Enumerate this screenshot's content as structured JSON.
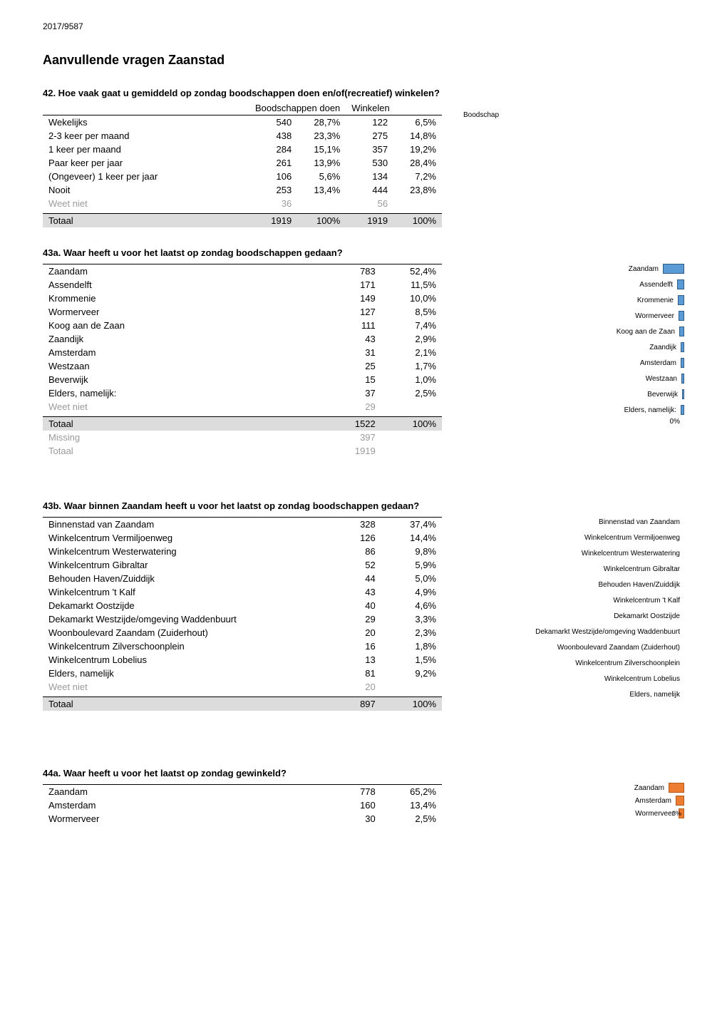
{
  "docref": "2017/9587",
  "title": "Aanvullende vragen Zaanstad",
  "q42": {
    "title": "42. Hoe vaak gaat u gemiddeld op zondag boodschappen doen en/of(recreatief) winkelen?",
    "col1": "Boodschappen doen",
    "col2": "Winkelen",
    "legend_fragment": "Boodschap",
    "rows": [
      {
        "label": "Wekelijks",
        "a": "540",
        "ap": "28,7%",
        "b": "122",
        "bp": "6,5%"
      },
      {
        "label": "2-3 keer per maand",
        "a": "438",
        "ap": "23,3%",
        "b": "275",
        "bp": "14,8%"
      },
      {
        "label": "1 keer per maand",
        "a": "284",
        "ap": "15,1%",
        "b": "357",
        "bp": "19,2%"
      },
      {
        "label": "Paar keer per jaar",
        "a": "261",
        "ap": "13,9%",
        "b": "530",
        "bp": "28,4%"
      },
      {
        "label": "(Ongeveer) 1 keer per jaar",
        "a": "106",
        "ap": "5,6%",
        "b": "134",
        "bp": "7,2%"
      },
      {
        "label": "Nooit",
        "a": "253",
        "ap": "13,4%",
        "b": "444",
        "bp": "23,8%"
      }
    ],
    "weetniet": {
      "label": "Weet niet",
      "a": "36",
      "b": "56"
    },
    "totaal": {
      "label": "Totaal",
      "a": "1919",
      "ap": "100%",
      "b": "1919",
      "bp": "100%"
    }
  },
  "q43a": {
    "title": "43a. Waar heeft u voor het laatst op zondag boodschappen gedaan?",
    "rows": [
      {
        "label": "Zaandam",
        "a": "783",
        "ap": "52,4%",
        "w": 30
      },
      {
        "label": "Assendelft",
        "a": "171",
        "ap": "11,5%",
        "w": 10
      },
      {
        "label": "Krommenie",
        "a": "149",
        "ap": "10,0%",
        "w": 9
      },
      {
        "label": "Wormerveer",
        "a": "127",
        "ap": "8,5%",
        "w": 8
      },
      {
        "label": "Koog aan de Zaan",
        "a": "111",
        "ap": "7,4%",
        "w": 7
      },
      {
        "label": "Zaandijk",
        "a": "43",
        "ap": "2,9%",
        "w": 5
      },
      {
        "label": "Amsterdam",
        "a": "31",
        "ap": "2,1%",
        "w": 5
      },
      {
        "label": "Westzaan",
        "a": "25",
        "ap": "1,7%",
        "w": 4
      },
      {
        "label": "Beverwijk",
        "a": "15",
        "ap": "1,0%",
        "w": 3
      },
      {
        "label": "Elders, namelijk:",
        "a": "37",
        "ap": "2,5%",
        "w": 5
      }
    ],
    "weetniet": {
      "label": "Weet niet",
      "a": "29"
    },
    "totaal": {
      "label": "Totaal",
      "a": "1522",
      "ap": "100%"
    },
    "missing": {
      "label": "Missing",
      "a": "397"
    },
    "grand": {
      "label": "Totaal",
      "a": "1919"
    },
    "axis0": "0%"
  },
  "q43b": {
    "title": "43b. Waar binnen Zaandam heeft u voor het laatst op zondag boodschappen gedaan?",
    "rows": [
      {
        "label": "Binnenstad van Zaandam",
        "a": "328",
        "ap": "37,4%"
      },
      {
        "label": "Winkelcentrum Vermiljoenweg",
        "a": "126",
        "ap": "14,4%"
      },
      {
        "label": "Winkelcentrum Westerwatering",
        "a": "86",
        "ap": "9,8%"
      },
      {
        "label": "Winkelcentrum Gibraltar",
        "a": "52",
        "ap": "5,9%"
      },
      {
        "label": "Behouden Haven/Zuiddijk",
        "a": "44",
        "ap": "5,0%"
      },
      {
        "label": "Winkelcentrum 't Kalf",
        "a": "43",
        "ap": "4,9%"
      },
      {
        "label": "Dekamarkt Oostzijde",
        "a": "40",
        "ap": "4,6%"
      },
      {
        "label": "Dekamarkt Westzijde/omgeving Waddenbuurt",
        "a": "29",
        "ap": "3,3%"
      },
      {
        "label": "Woonboulevard Zaandam (Zuiderhout)",
        "a": "20",
        "ap": "2,3%"
      },
      {
        "label": "Winkelcentrum Zilverschoonplein",
        "a": "16",
        "ap": "1,8%"
      },
      {
        "label": "Winkelcentrum Lobelius",
        "a": "13",
        "ap": "1,5%"
      },
      {
        "label": "Elders, namelijk",
        "a": "81",
        "ap": "9,2%"
      }
    ],
    "weetniet": {
      "label": "Weet niet",
      "a": "20"
    },
    "totaal": {
      "label": "Totaal",
      "a": "897",
      "ap": "100%"
    }
  },
  "q44a": {
    "title": "44a. Waar heeft u voor het laatst op zondag gewinkeld?",
    "rows": [
      {
        "label": "Zaandam",
        "a": "778",
        "ap": "65,2%",
        "w": 22
      },
      {
        "label": "Amsterdam",
        "a": "160",
        "ap": "13,4%",
        "w": 12
      },
      {
        "label": "Wormerveer",
        "a": "30",
        "ap": "2,5%",
        "w": 8,
        "tick": "3%"
      }
    ]
  }
}
